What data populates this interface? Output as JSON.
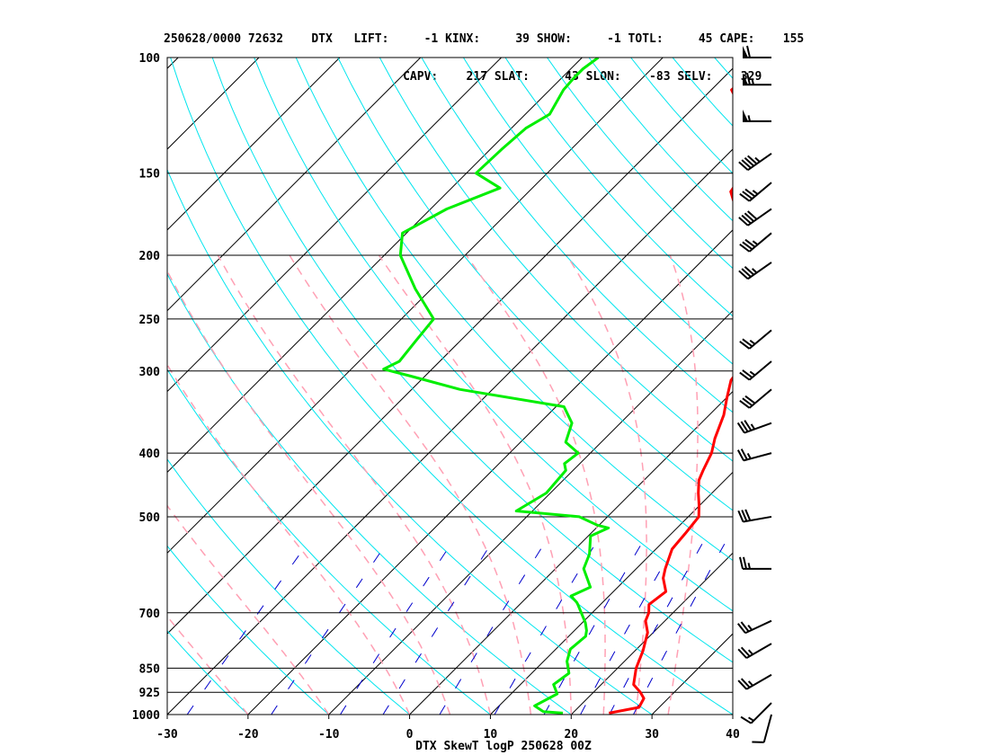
{
  "header": {
    "line1": "250628/0000 72632    DTX   LIFT:     -1 KINX:     39 SHOW:     -1 TOTL:     45 CAPE:    155",
    "line2": "                                  CAPV:    217 SLAT:     43 SLON:    -83 SELV:    329"
  },
  "footer": "DTX SkewT logP 250628 00Z",
  "colors": {
    "temperature": "#ff0000",
    "dewpoint": "#00ee00",
    "isotherm": "#000000",
    "isobar": "#000000",
    "dry_adiabat": "#00e5ee",
    "moist_adiabat": "#ffa0b4",
    "mixing_ratio": "#0000cc"
  },
  "chart_data": {
    "type": "skewt",
    "title": "",
    "xlabel": "",
    "ylabel": "",
    "pressure_range": [
      1000,
      100
    ],
    "temperature_range": [
      -30,
      40
    ],
    "pressure_levels": [
      "100",
      "150",
      "200",
      "250",
      "300",
      "400",
      "500",
      "700",
      "850",
      "925",
      "1000"
    ],
    "pressure_values": [
      100,
      150,
      200,
      250,
      300,
      400,
      500,
      700,
      850,
      925,
      1000
    ],
    "temperature_ticks": [
      "-30",
      "-20",
      "-10",
      "0",
      "10",
      "20",
      "30",
      "40"
    ],
    "temperature_tick_values": [
      -30,
      -20,
      -10,
      0,
      10,
      20,
      30,
      40
    ],
    "temperature_profile": [
      [
        995,
        24.5
      ],
      [
        975,
        27.5
      ],
      [
        945,
        27
      ],
      [
        925,
        25.8
      ],
      [
        900,
        24
      ],
      [
        850,
        22.3
      ],
      [
        800,
        21
      ],
      [
        750,
        19.3
      ],
      [
        720,
        17.6
      ],
      [
        700,
        17
      ],
      [
        680,
        16
      ],
      [
        650,
        16.5
      ],
      [
        620,
        14.5
      ],
      [
        600,
        13.6
      ],
      [
        560,
        12
      ],
      [
        530,
        11.7
      ],
      [
        500,
        11.3
      ],
      [
        480,
        9.9
      ],
      [
        460,
        8.3
      ],
      [
        440,
        6.8
      ],
      [
        425,
        6.1
      ],
      [
        400,
        5
      ],
      [
        380,
        3.6
      ],
      [
        350,
        1.8
      ],
      [
        330,
        0.1
      ],
      [
        310,
        -1.6
      ],
      [
        300,
        -1.9
      ],
      [
        275,
        -4.8
      ],
      [
        250,
        -7.7
      ],
      [
        225,
        -11.2
      ],
      [
        200,
        -16
      ],
      [
        185,
        -18.3
      ],
      [
        160,
        -25
      ],
      [
        150,
        -25.7
      ],
      [
        145,
        -25.6
      ],
      [
        137,
        -27.2
      ],
      [
        129,
        -28.1
      ],
      [
        123,
        -32.5
      ],
      [
        112,
        -37.5
      ],
      [
        109,
        -37.3
      ],
      [
        100,
        -40.5
      ]
    ],
    "dewpoint_profile": [
      [
        995,
        18.8
      ],
      [
        990,
        16.2
      ],
      [
        970,
        14.4
      ],
      [
        930,
        15.7
      ],
      [
        900,
        14.1
      ],
      [
        865,
        14.6
      ],
      [
        830,
        12.9
      ],
      [
        795,
        11.8
      ],
      [
        760,
        12.1
      ],
      [
        745,
        11.5
      ],
      [
        725,
        10.4
      ],
      [
        680,
        7.2
      ],
      [
        675,
        6.8
      ],
      [
        660,
        5.3
      ],
      [
        640,
        6.6
      ],
      [
        600,
        3.5
      ],
      [
        570,
        2.4
      ],
      [
        535,
        0.3
      ],
      [
        520,
        1.5
      ],
      [
        515,
        -0.2
      ],
      [
        500,
        -3.5
      ],
      [
        490,
        -12
      ],
      [
        460,
        -10.5
      ],
      [
        425,
        -10.9
      ],
      [
        415,
        -11.9
      ],
      [
        400,
        -11.5
      ],
      [
        385,
        -14.4
      ],
      [
        360,
        -16
      ],
      [
        340,
        -19
      ],
      [
        320,
        -34
      ],
      [
        305,
        -42
      ],
      [
        298,
        -46
      ],
      [
        290,
        -45
      ],
      [
        270,
        -45.5
      ],
      [
        250,
        -46
      ],
      [
        225,
        -52
      ],
      [
        200,
        -58
      ],
      [
        185,
        -60.5
      ],
      [
        170,
        -58
      ],
      [
        158,
        -54
      ],
      [
        150,
        -58.8
      ],
      [
        138,
        -58.6
      ],
      [
        128,
        -58.2
      ],
      [
        122,
        -57
      ],
      [
        112,
        -58.3
      ],
      [
        107,
        -58.5
      ],
      [
        104,
        -58.5
      ],
      [
        100,
        -58
      ]
    ],
    "wind_barbs": [
      {
        "p": 100,
        "dir": 270,
        "spd": 60
      },
      {
        "p": 110,
        "dir": 270,
        "spd": 65
      },
      {
        "p": 125,
        "dir": 270,
        "spd": 55
      },
      {
        "p": 140,
        "dir": 235,
        "spd": 45
      },
      {
        "p": 155,
        "dir": 230,
        "spd": 35
      },
      {
        "p": 170,
        "dir": 235,
        "spd": 40
      },
      {
        "p": 185,
        "dir": 230,
        "spd": 35
      },
      {
        "p": 205,
        "dir": 235,
        "spd": 35
      },
      {
        "p": 260,
        "dir": 230,
        "spd": 25
      },
      {
        "p": 290,
        "dir": 230,
        "spd": 25
      },
      {
        "p": 320,
        "dir": 230,
        "spd": 30
      },
      {
        "p": 360,
        "dir": 250,
        "spd": 35
      },
      {
        "p": 400,
        "dir": 255,
        "spd": 25
      },
      {
        "p": 500,
        "dir": 260,
        "spd": 30
      },
      {
        "p": 600,
        "dir": 270,
        "spd": 25
      },
      {
        "p": 720,
        "dir": 245,
        "spd": 25
      },
      {
        "p": 780,
        "dir": 240,
        "spd": 25
      },
      {
        "p": 870,
        "dir": 240,
        "spd": 25
      },
      {
        "p": 960,
        "dir": 225,
        "spd": 15
      },
      {
        "p": 1000,
        "dir": 195,
        "spd": 10
      }
    ],
    "grid": true
  }
}
